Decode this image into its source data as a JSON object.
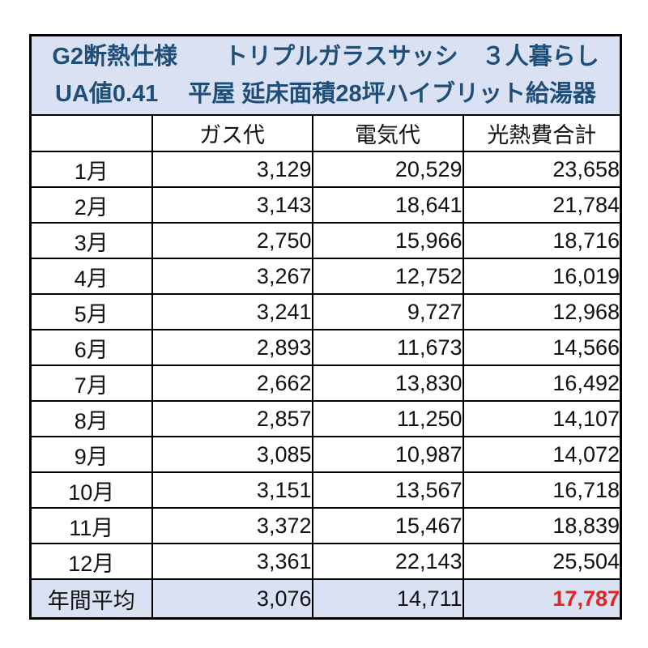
{
  "colors": {
    "header_bg": "#d9e1f2",
    "header_text": "#1f4e79",
    "border": "#000000",
    "highlight_red": "#e6231e"
  },
  "table": {
    "title_line1": "G2断熱仕様　　トリプルガラスサッシ　３人暮らし",
    "title_line2": "UA値0.41　 平屋 延床面積28坪ハイブリット給湯器",
    "columns": {
      "month": "",
      "gas": "ガス代",
      "electric": "電気代",
      "total": "光熱費合計"
    },
    "rows": [
      {
        "month": "1月",
        "gas": "3,129",
        "electric": "20,529",
        "total": "23,658"
      },
      {
        "month": "2月",
        "gas": "3,143",
        "electric": "18,641",
        "total": "21,784"
      },
      {
        "month": "3月",
        "gas": "2,750",
        "electric": "15,966",
        "total": "18,716"
      },
      {
        "month": "4月",
        "gas": "3,267",
        "electric": "12,752",
        "total": "16,019"
      },
      {
        "month": "5月",
        "gas": "3,241",
        "electric": "9,727",
        "total": "12,968"
      },
      {
        "month": "6月",
        "gas": "2,893",
        "electric": "11,673",
        "total": "14,566"
      },
      {
        "month": "7月",
        "gas": "2,662",
        "electric": "13,830",
        "total": "16,492"
      },
      {
        "month": "8月",
        "gas": "2,857",
        "electric": "11,250",
        "total": "14,107"
      },
      {
        "month": "9月",
        "gas": "3,085",
        "electric": "10,987",
        "total": "14,072"
      },
      {
        "month": "10月",
        "gas": "3,151",
        "electric": "13,567",
        "total": "16,718"
      },
      {
        "month": "11月",
        "gas": "3,372",
        "electric": "15,467",
        "total": "18,839"
      },
      {
        "month": "12月",
        "gas": "3,361",
        "electric": "22,143",
        "total": "25,504"
      }
    ],
    "summary": {
      "label": "年間平均",
      "gas": "3,076",
      "electric": "14,711",
      "total": "17,787"
    }
  }
}
